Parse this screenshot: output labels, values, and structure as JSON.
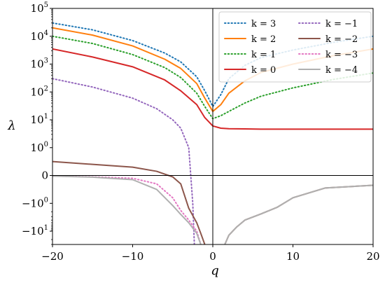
{
  "chart_data": {
    "type": "line",
    "xlabel": "q",
    "ylabel": "λ",
    "xlim": [
      -20,
      20
    ],
    "x_ticks": [
      -20,
      -10,
      0,
      10,
      20
    ],
    "x_tick_labels": [
      "−20",
      "−10",
      "0",
      "10",
      "20"
    ],
    "y_scale": "symlog",
    "ylim": [
      -30,
      100000
    ],
    "y_tick_labels": [
      "10^5",
      "10^4",
      "10^3",
      "10^2",
      "10^1",
      "10^0",
      "0",
      "−10^0",
      "−10^1"
    ],
    "grid": false,
    "legend_position": "top-right",
    "series": [
      {
        "name": "k = 3",
        "color": "#1f77b4",
        "style": "dotted",
        "x": [
          -20,
          -15,
          -10,
          -6,
          -4,
          -2,
          -1,
          0,
          1,
          2,
          4,
          6,
          10,
          15,
          20
        ],
        "y": [
          30000,
          17000,
          7000,
          2500,
          1200,
          350,
          110,
          30,
          80,
          300,
          900,
          1700,
          3200,
          6000,
          10000
        ]
      },
      {
        "name": "k = 2",
        "color": "#ff7f0e",
        "style": "solid",
        "x": [
          -20,
          -15,
          -10,
          -6,
          -4,
          -2,
          -1,
          0,
          1,
          2,
          4,
          6,
          10,
          15,
          20
        ],
        "y": [
          20000,
          11000,
          4500,
          1500,
          700,
          200,
          60,
          20,
          35,
          90,
          250,
          500,
          1000,
          2000,
          3500
        ]
      },
      {
        "name": "k = 1",
        "color": "#2ca02c",
        "style": "dotted",
        "x": [
          -20,
          -15,
          -10,
          -6,
          -4,
          -2,
          -1,
          0,
          1,
          2,
          4,
          6,
          10,
          15,
          20
        ],
        "y": [
          10000,
          5500,
          2200,
          750,
          330,
          90,
          30,
          11,
          14,
          20,
          40,
          70,
          140,
          280,
          480
        ]
      },
      {
        "name": "k = 0",
        "color": "#d62728",
        "style": "solid",
        "x": [
          -20,
          -15,
          -10,
          -6,
          -4,
          -2,
          -1,
          0,
          1,
          2,
          4,
          6,
          10,
          15,
          20
        ],
        "y": [
          3500,
          1800,
          800,
          270,
          110,
          35,
          12,
          6,
          5,
          4.8,
          4.7,
          4.6,
          4.6,
          4.6,
          4.6
        ]
      },
      {
        "name": "k = −1",
        "color": "#9467bd",
        "style": "dotted",
        "x": [
          -20,
          -15,
          -10,
          -7,
          -5,
          -4,
          -3,
          -2.5,
          -2.3
        ],
        "y": [
          300,
          150,
          60,
          25,
          10,
          5,
          1,
          -1,
          -30
        ]
      },
      {
        "name": "k = −2",
        "color": "#8c564b",
        "style": "solid",
        "x": [
          -20,
          -15,
          -10,
          -7,
          -5,
          -4,
          -3,
          -2,
          -1.5,
          -1,
          1.5,
          2,
          3,
          4,
          6,
          8,
          10,
          14,
          20
        ],
        "y": [
          0.5,
          0.4,
          0.3,
          0.15,
          -0.05,
          -0.3,
          -1.5,
          -5,
          -12,
          -30,
          -30,
          -14,
          -7,
          -4,
          -2.4,
          -1.4,
          -0.8,
          -0.45,
          -0.35
        ]
      },
      {
        "name": "k = −3",
        "color": "#e377c2",
        "style": "dotted",
        "x": [
          -20,
          -15,
          -10,
          -7,
          -5,
          -4,
          -3,
          -2,
          -1.5
        ],
        "y": [
          -0.02,
          -0.05,
          -0.1,
          -0.3,
          -0.8,
          -1.8,
          -4,
          -10,
          -30
        ]
      },
      {
        "name": "k = −4",
        "color": "#b0b0b0",
        "style": "solid",
        "x": [
          -20,
          -15,
          -10,
          -7,
          -5,
          -4,
          -3,
          -2,
          -1.5,
          1.5,
          2,
          3,
          4,
          6,
          8,
          10,
          14,
          20
        ],
        "y": [
          -0.02,
          -0.06,
          -0.15,
          -0.5,
          -1.2,
          -2.5,
          -5,
          -12,
          -30,
          -30,
          -14,
          -7,
          -4,
          -2.4,
          -1.4,
          -0.8,
          -0.45,
          -0.35
        ]
      }
    ]
  }
}
